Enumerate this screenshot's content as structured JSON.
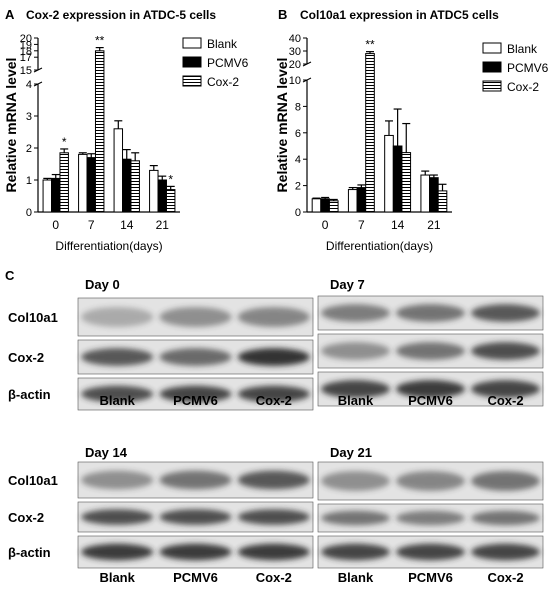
{
  "colors": {
    "blank": "#ffffff",
    "pcmv6": "#000000",
    "cox2_hatch": "#000000",
    "axis": "#000000",
    "band": "#2a2a2a"
  },
  "chart_data": [
    {
      "panel": "A",
      "type": "bar",
      "title": "Cox-2 expression in ATDC-5 cells",
      "xlabel": "Differentiation(days)",
      "ylabel": "Relative mRNA level",
      "categories": [
        "0",
        "7",
        "14",
        "21"
      ],
      "series": [
        {
          "name": "Blank",
          "values": [
            1.0,
            1.8,
            2.6,
            1.3
          ],
          "errors": [
            0.05,
            0.05,
            0.25,
            0.15
          ]
        },
        {
          "name": "PCMV6",
          "values": [
            1.05,
            1.7,
            1.65,
            1.0
          ],
          "errors": [
            0.12,
            0.12,
            0.3,
            0.12
          ]
        },
        {
          "name": "Cox-2",
          "values": [
            1.85,
            18.0,
            1.6,
            0.7
          ],
          "errors": [
            0.12,
            0.5,
            0.25,
            0.1
          ]
        }
      ],
      "significance": [
        "*",
        "**",
        "",
        "*"
      ],
      "axis_break": {
        "lower": [
          0,
          4
        ],
        "upper": [
          15,
          20
        ]
      },
      "lower_ticks": [
        0,
        1,
        2,
        3,
        4
      ],
      "upper_ticks": [
        15,
        17,
        18,
        19,
        20
      ],
      "upper_tick_labels": [
        "15",
        "17",
        "18",
        "19",
        "20"
      ],
      "legend_placement": "top-right"
    },
    {
      "panel": "B",
      "type": "bar",
      "title": "Col10a1 expression in ATDC5 cells",
      "xlabel": "Differentiation(days)",
      "ylabel": "Relative mRNA level",
      "categories": [
        "0",
        "7",
        "14",
        "21"
      ],
      "series": [
        {
          "name": "Blank",
          "values": [
            1.0,
            1.7,
            5.8,
            2.8
          ],
          "errors": [
            0.05,
            0.15,
            1.1,
            0.3
          ]
        },
        {
          "name": "PCMV6",
          "values": [
            1.0,
            1.85,
            5.0,
            2.6
          ],
          "errors": [
            0.1,
            0.2,
            2.8,
            0.2
          ]
        },
        {
          "name": "Cox-2",
          "values": [
            0.85,
            28.0,
            4.5,
            1.6
          ],
          "errors": [
            0.1,
            1.5,
            2.2,
            0.5
          ]
        }
      ],
      "significance": [
        "",
        "**",
        "",
        ""
      ],
      "axis_break": {
        "lower": [
          0,
          10
        ],
        "upper": [
          20,
          40
        ]
      },
      "lower_ticks": [
        0,
        2,
        4,
        6,
        8,
        10
      ],
      "upper_ticks": [
        20,
        30,
        40
      ],
      "upper_tick_labels": [
        "20",
        "30",
        "40"
      ],
      "legend_placement": "top-right"
    }
  ],
  "blots": {
    "panel_label": "C",
    "groups": [
      {
        "title": "Day 0",
        "rows": [
          "Col10a1",
          "Cox-2",
          "β-actin"
        ],
        "lanes": [
          "Blank",
          "PCMV6",
          "Cox-2"
        ],
        "intensity": [
          [
            0.3,
            0.45,
            0.5
          ],
          [
            0.75,
            0.65,
            0.95
          ],
          [
            0.8,
            0.85,
            0.85
          ]
        ]
      },
      {
        "title": "Day 7",
        "rows": [
          "Col10a1",
          "Cox-2",
          "β-actin"
        ],
        "lanes": [
          "Blank",
          "PCMV6",
          "Cox-2"
        ],
        "intensity": [
          [
            0.55,
            0.6,
            0.75
          ],
          [
            0.45,
            0.6,
            0.8
          ],
          [
            0.85,
            0.9,
            0.85
          ]
        ]
      },
      {
        "title": "Day 14",
        "rows": [
          "Col10a1",
          "Cox-2",
          "β-actin"
        ],
        "lanes": [
          "Blank",
          "PCMV6",
          "Cox-2"
        ],
        "intensity": [
          [
            0.45,
            0.6,
            0.75
          ],
          [
            0.8,
            0.8,
            0.8
          ],
          [
            0.9,
            0.9,
            0.9
          ]
        ]
      },
      {
        "title": "Day 21",
        "rows": [
          "Col10a1",
          "Cox-2",
          "β-actin"
        ],
        "lanes": [
          "Blank",
          "PCMV6",
          "Cox-2"
        ],
        "intensity": [
          [
            0.45,
            0.5,
            0.6
          ],
          [
            0.6,
            0.55,
            0.6
          ],
          [
            0.85,
            0.85,
            0.85
          ]
        ]
      }
    ]
  }
}
